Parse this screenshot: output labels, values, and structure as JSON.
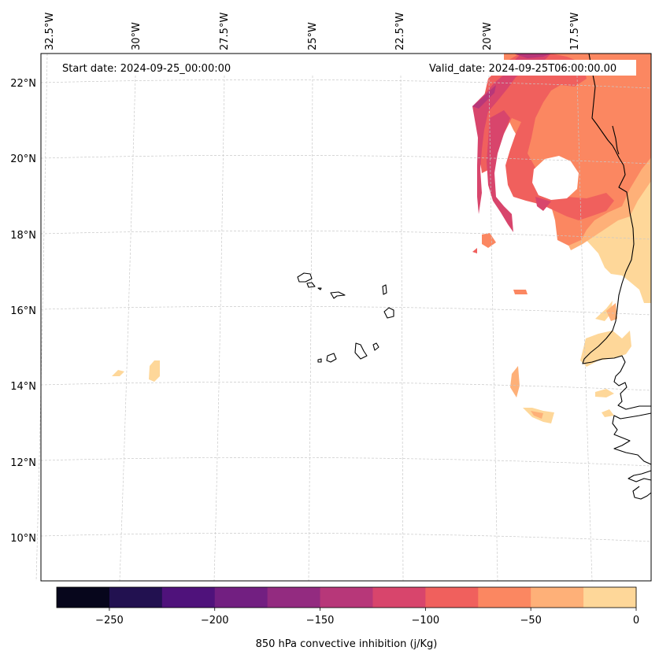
{
  "annotations": {
    "start_date": "Start date: 2024-09-25_00:00:00",
    "valid_date": "Valid_date: 2024-09-25T06:00:00.00"
  },
  "longitude_labels": [
    "32.5°W",
    "30°W",
    "27.5°W",
    "25°W",
    "22.5°W",
    "20°W",
    "17.5°W"
  ],
  "latitude_labels": [
    "22°N",
    "20°N",
    "18°N",
    "16°N",
    "14°N",
    "12°N",
    "10°N"
  ],
  "colorbar": {
    "label": "850 hPa convective inhibition (j/Kg)",
    "ticks": [
      "−250",
      "−200",
      "−150",
      "−100",
      "−50",
      "0"
    ],
    "levels": [
      -275,
      -250,
      -225,
      -200,
      -175,
      -150,
      -125,
      -100,
      -75,
      -50,
      -25,
      0
    ],
    "colors": [
      "#07061c",
      "#221150",
      "#4f127b",
      "#721f81",
      "#932b80",
      "#b73779",
      "#d8456c",
      "#f0605d",
      "#fb8761",
      "#feb078",
      "#fed799"
    ]
  },
  "colors": {
    "coastline": "#000000",
    "gridline": "#c8c8c8"
  }
}
